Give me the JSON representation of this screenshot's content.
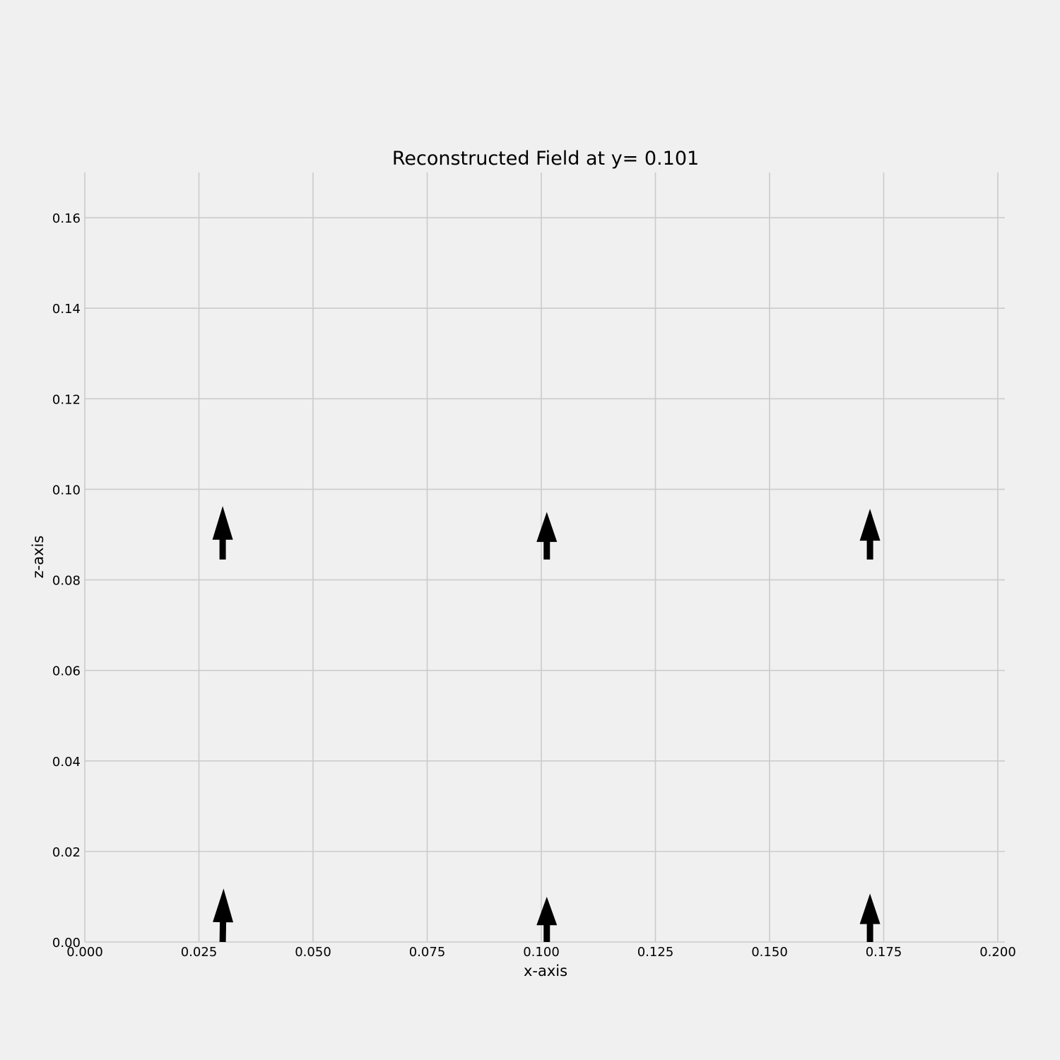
{
  "chart_data": {
    "type": "quiver",
    "title": "Reconstructed Field at y= 0.101",
    "xlabel": "x-axis",
    "ylabel": "z-axis",
    "xlim": [
      0.0,
      0.2
    ],
    "ylim": [
      0.0,
      0.17
    ],
    "xticks": [
      0.0,
      0.025,
      0.05,
      0.075,
      0.1,
      0.125,
      0.15,
      0.175,
      0.2
    ],
    "xtick_labels": [
      "0.000",
      "0.025",
      "0.050",
      "0.075",
      "0.100",
      "0.125",
      "0.150",
      "0.175",
      "0.200"
    ],
    "yticks": [
      0.0,
      0.02,
      0.04,
      0.06,
      0.08,
      0.1,
      0.12,
      0.14,
      0.16
    ],
    "ytick_labels": [
      "0.00",
      "0.02",
      "0.04",
      "0.06",
      "0.08",
      "0.10",
      "0.12",
      "0.14",
      "0.16"
    ],
    "grid": true,
    "arrows": [
      {
        "x": 0.0302,
        "z": 0.0,
        "u": 0.0002,
        "w": 0.0118
      },
      {
        "x": 0.1012,
        "z": 0.0,
        "u": 0.0,
        "w": 0.01
      },
      {
        "x": 0.172,
        "z": 0.0,
        "u": 0.0,
        "w": 0.0107
      },
      {
        "x": 0.0302,
        "z": 0.0845,
        "u": 0.0,
        "w": 0.0118
      },
      {
        "x": 0.1012,
        "z": 0.0845,
        "u": 0.0,
        "w": 0.0105
      },
      {
        "x": 0.172,
        "z": 0.0845,
        "u": 0.0,
        "w": 0.0112
      }
    ]
  }
}
